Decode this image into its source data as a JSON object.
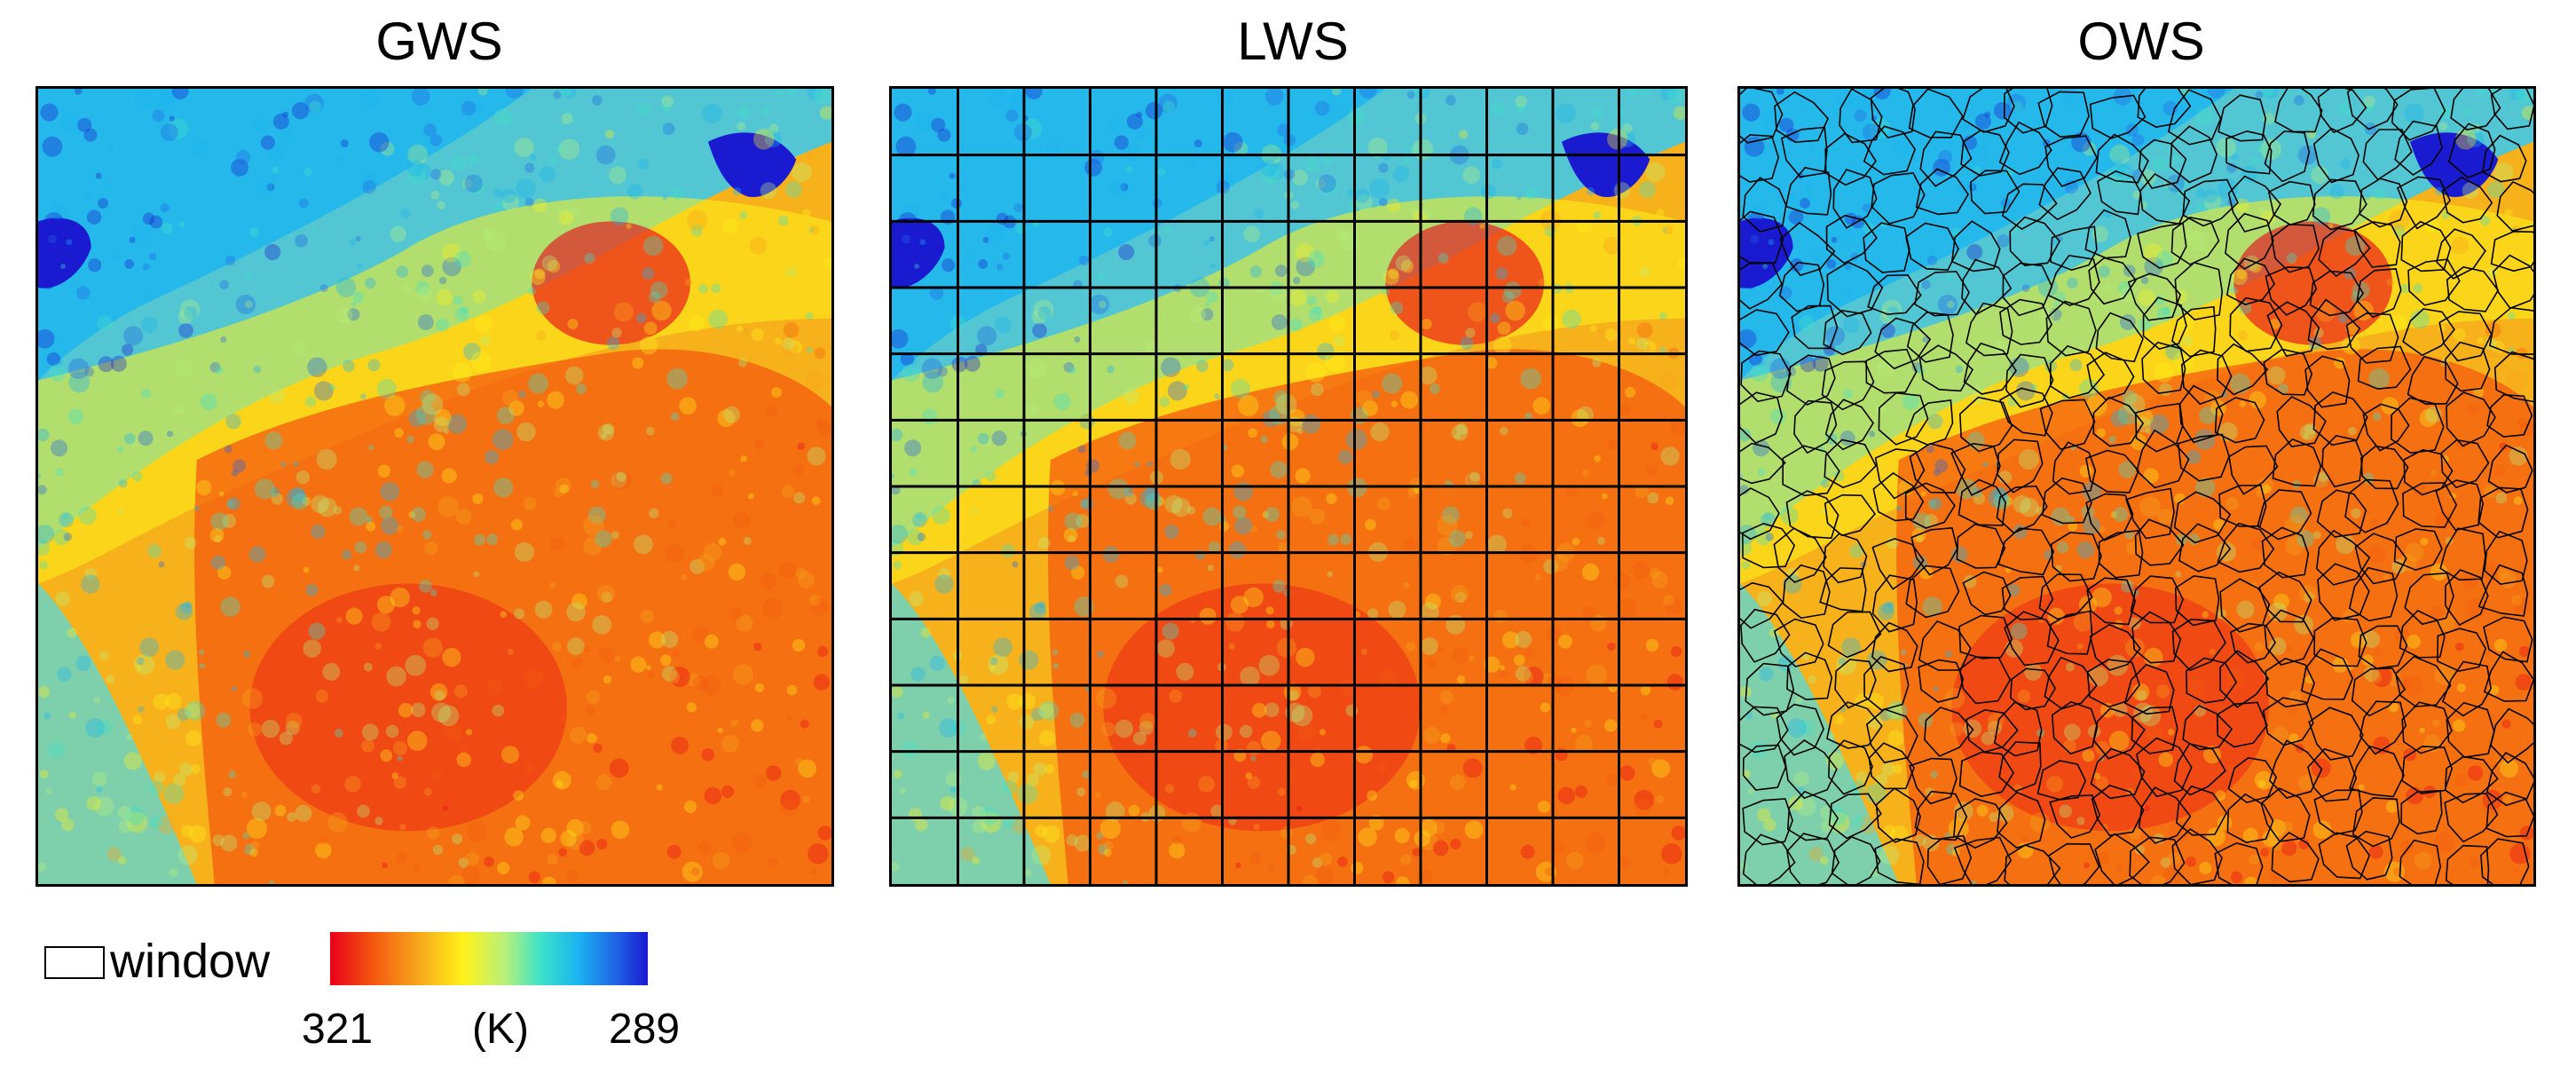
{
  "panels": [
    {
      "title": "GWS",
      "window_type": "global"
    },
    {
      "title": "LWS",
      "window_type": "local-grid",
      "grid_divisions": 12
    },
    {
      "title": "OWS",
      "window_type": "object"
    }
  ],
  "legend": {
    "window_label": "window",
    "colorbar": {
      "left_value": "321",
      "unit": "(K)",
      "right_value": "289"
    },
    "colors": [
      "#e8001a",
      "#f45a0f",
      "#f7a21b",
      "#fff21a",
      "#b8f07a",
      "#3fe3c8",
      "#1ab4f0",
      "#1f63e6",
      "#1a1ad1"
    ]
  }
}
